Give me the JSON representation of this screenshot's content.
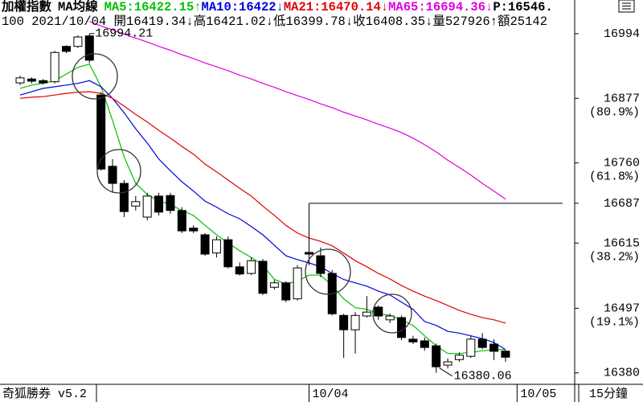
{
  "app_name": "奇狐勝券 v5.2",
  "period": "15分鐘",
  "chart_data": {
    "type": "candlestick",
    "title": "加權指數",
    "subtitle": "MA均線",
    "info_line": "100 2021/10/04 開16419.34↓高16421.02↓低16399.78↓收16408.35↓量527926↑額25142",
    "header_extra": "P:16546.",
    "categories": [
      null,
      null,
      null,
      null,
      null,
      null,
      null,
      null,
      null,
      null,
      null,
      null,
      null,
      null,
      null,
      null,
      null,
      null,
      null,
      null,
      null,
      null,
      null,
      null,
      null,
      "10/04",
      null,
      null,
      null,
      null,
      null,
      null,
      null,
      null,
      null,
      null,
      null,
      null,
      null,
      null,
      null,
      null,
      null,
      "10/05"
    ],
    "open": [
      16905,
      16912,
      16909,
      16907,
      16971,
      16971,
      16990,
      16883,
      16754,
      16723,
      16682,
      16662,
      16700,
      16701,
      16674,
      16642,
      16630,
      16597,
      16621,
      16572,
      16560,
      16582,
      16535,
      16543,
      16514,
      16598,
      16592,
      16560,
      16484,
      16458,
      16483,
      16499,
      16476,
      16480,
      16441,
      16438,
      16429,
      16394,
      16404,
      16410,
      16441,
      16432,
      16419.34,
      null
    ],
    "high": [
      16918,
      16915,
      16912,
      16963,
      16973,
      16991,
      16994.21,
      16888,
      16767,
      16729,
      16700,
      16706,
      16706,
      16706,
      16680,
      16647,
      16633,
      16627,
      16627,
      16580,
      16589,
      16586,
      16548,
      16546,
      16575,
      16687,
      16607,
      16566,
      16487,
      16490,
      16519,
      16502,
      16487,
      16484,
      16447,
      16444,
      16433,
      16406,
      16417,
      16447,
      16452,
      16441,
      16421.02,
      null
    ],
    "low": [
      16901,
      16904,
      16902,
      16904,
      16959,
      16968,
      16941,
      16746,
      16706,
      16662,
      16674,
      16656,
      16665,
      16668,
      16633,
      16633,
      16592,
      16589,
      16569,
      16556,
      16557,
      16521,
      16531,
      16508,
      16511,
      16575,
      16553,
      16484,
      16407,
      16415,
      16480,
      16476,
      16470,
      16439,
      16432,
      16420,
      16380.06,
      16388,
      16400,
      16407,
      16423,
      16403,
      16399.78,
      null
    ],
    "close": [
      16914,
      16908,
      16905,
      16960,
      16962,
      16988,
      16946,
      16749,
      16723,
      16672,
      16690,
      16700,
      16671,
      16674,
      16637,
      16637,
      16595,
      16621,
      16572,
      16559,
      16583,
      16524,
      16543,
      16512,
      16570,
      16595,
      16560,
      16487,
      16458,
      16484,
      16490,
      16483,
      16483,
      16444,
      16436,
      16426,
      16391,
      16400,
      16412,
      16441,
      16426,
      16419,
      16408.35,
      null
    ],
    "high_label_index": 6,
    "low_label_index": 36,
    "reference_line": 16687,
    "series": [
      {
        "name": "MA5:16422.15↑",
        "color": "#00c000",
        "values": [
          16895,
          16901,
          16904,
          16909,
          16921,
          16933,
          16939,
          16898,
          16837,
          16771,
          16723,
          16703,
          16691,
          16685,
          16674,
          16665,
          16647,
          16630,
          16615,
          16601,
          16589,
          16575,
          16549,
          16541,
          16546,
          16557,
          16557,
          16538,
          16514,
          16498,
          16495,
          16487,
          16484,
          16476,
          16466,
          16447,
          16429,
          16415,
          16415,
          16417,
          16420,
          16422,
          16422.15,
          null
        ]
      },
      {
        "name": "MA10:16422↓",
        "color": "#0000e0",
        "values": [
          16883,
          16889,
          16895,
          16898,
          16901,
          16904,
          16909,
          16898,
          16877,
          16851,
          16822,
          16796,
          16767,
          16746,
          16726,
          16709,
          16691,
          16680,
          16668,
          16659,
          16645,
          16630,
          16611,
          16592,
          16585,
          16579,
          16572,
          16560,
          16549,
          16543,
          16537,
          16528,
          16521,
          16508,
          16495,
          16473,
          16466,
          16455,
          16452,
          16447,
          16442,
          16435,
          16422,
          null
        ]
      },
      {
        "name": "MA21:16470.14↓",
        "color": "#e00000",
        "values": [
          16877,
          16879,
          16880,
          16883,
          16886,
          16888,
          16889,
          16886,
          16877,
          16863,
          16848,
          16834,
          16819,
          16805,
          16790,
          16776,
          16758,
          16744,
          16729,
          16714,
          16700,
          16682,
          16665,
          16647,
          16633,
          16624,
          16618,
          16610,
          16597,
          16583,
          16572,
          16560,
          16550,
          16538,
          16528,
          16519,
          16511,
          16502,
          16493,
          16486,
          16480,
          16476,
          16470.14,
          null
        ]
      },
      {
        "name": "MA65:16694.36↓",
        "color": "#e000e0",
        "values": [
          null,
          null,
          null,
          null,
          null,
          null,
          17016,
          17008,
          17001,
          16993,
          16986,
          16979,
          16971,
          16964,
          16956,
          16949,
          16941,
          16934,
          16927,
          16919,
          16912,
          16904,
          16897,
          16889,
          16882,
          16875,
          16867,
          16860,
          16852,
          16845,
          16838,
          16830,
          16823,
          16815,
          16805,
          16793,
          16780,
          16765,
          16752,
          16738,
          16723,
          16709,
          16694.36,
          null
        ]
      }
    ],
    "ylim": [
      16360,
      17055
    ],
    "yticks": [
      16994,
      16877,
      16760,
      16687,
      16615,
      16497,
      16380
    ],
    "fib_labels": [
      {
        "value": 16877,
        "label": "(80.9%)"
      },
      {
        "value": 16760,
        "label": "(61.8%)"
      },
      {
        "value": 16615,
        "label": "(38.2%)"
      },
      {
        "value": 16497,
        "label": "(19.1%)"
      }
    ]
  }
}
